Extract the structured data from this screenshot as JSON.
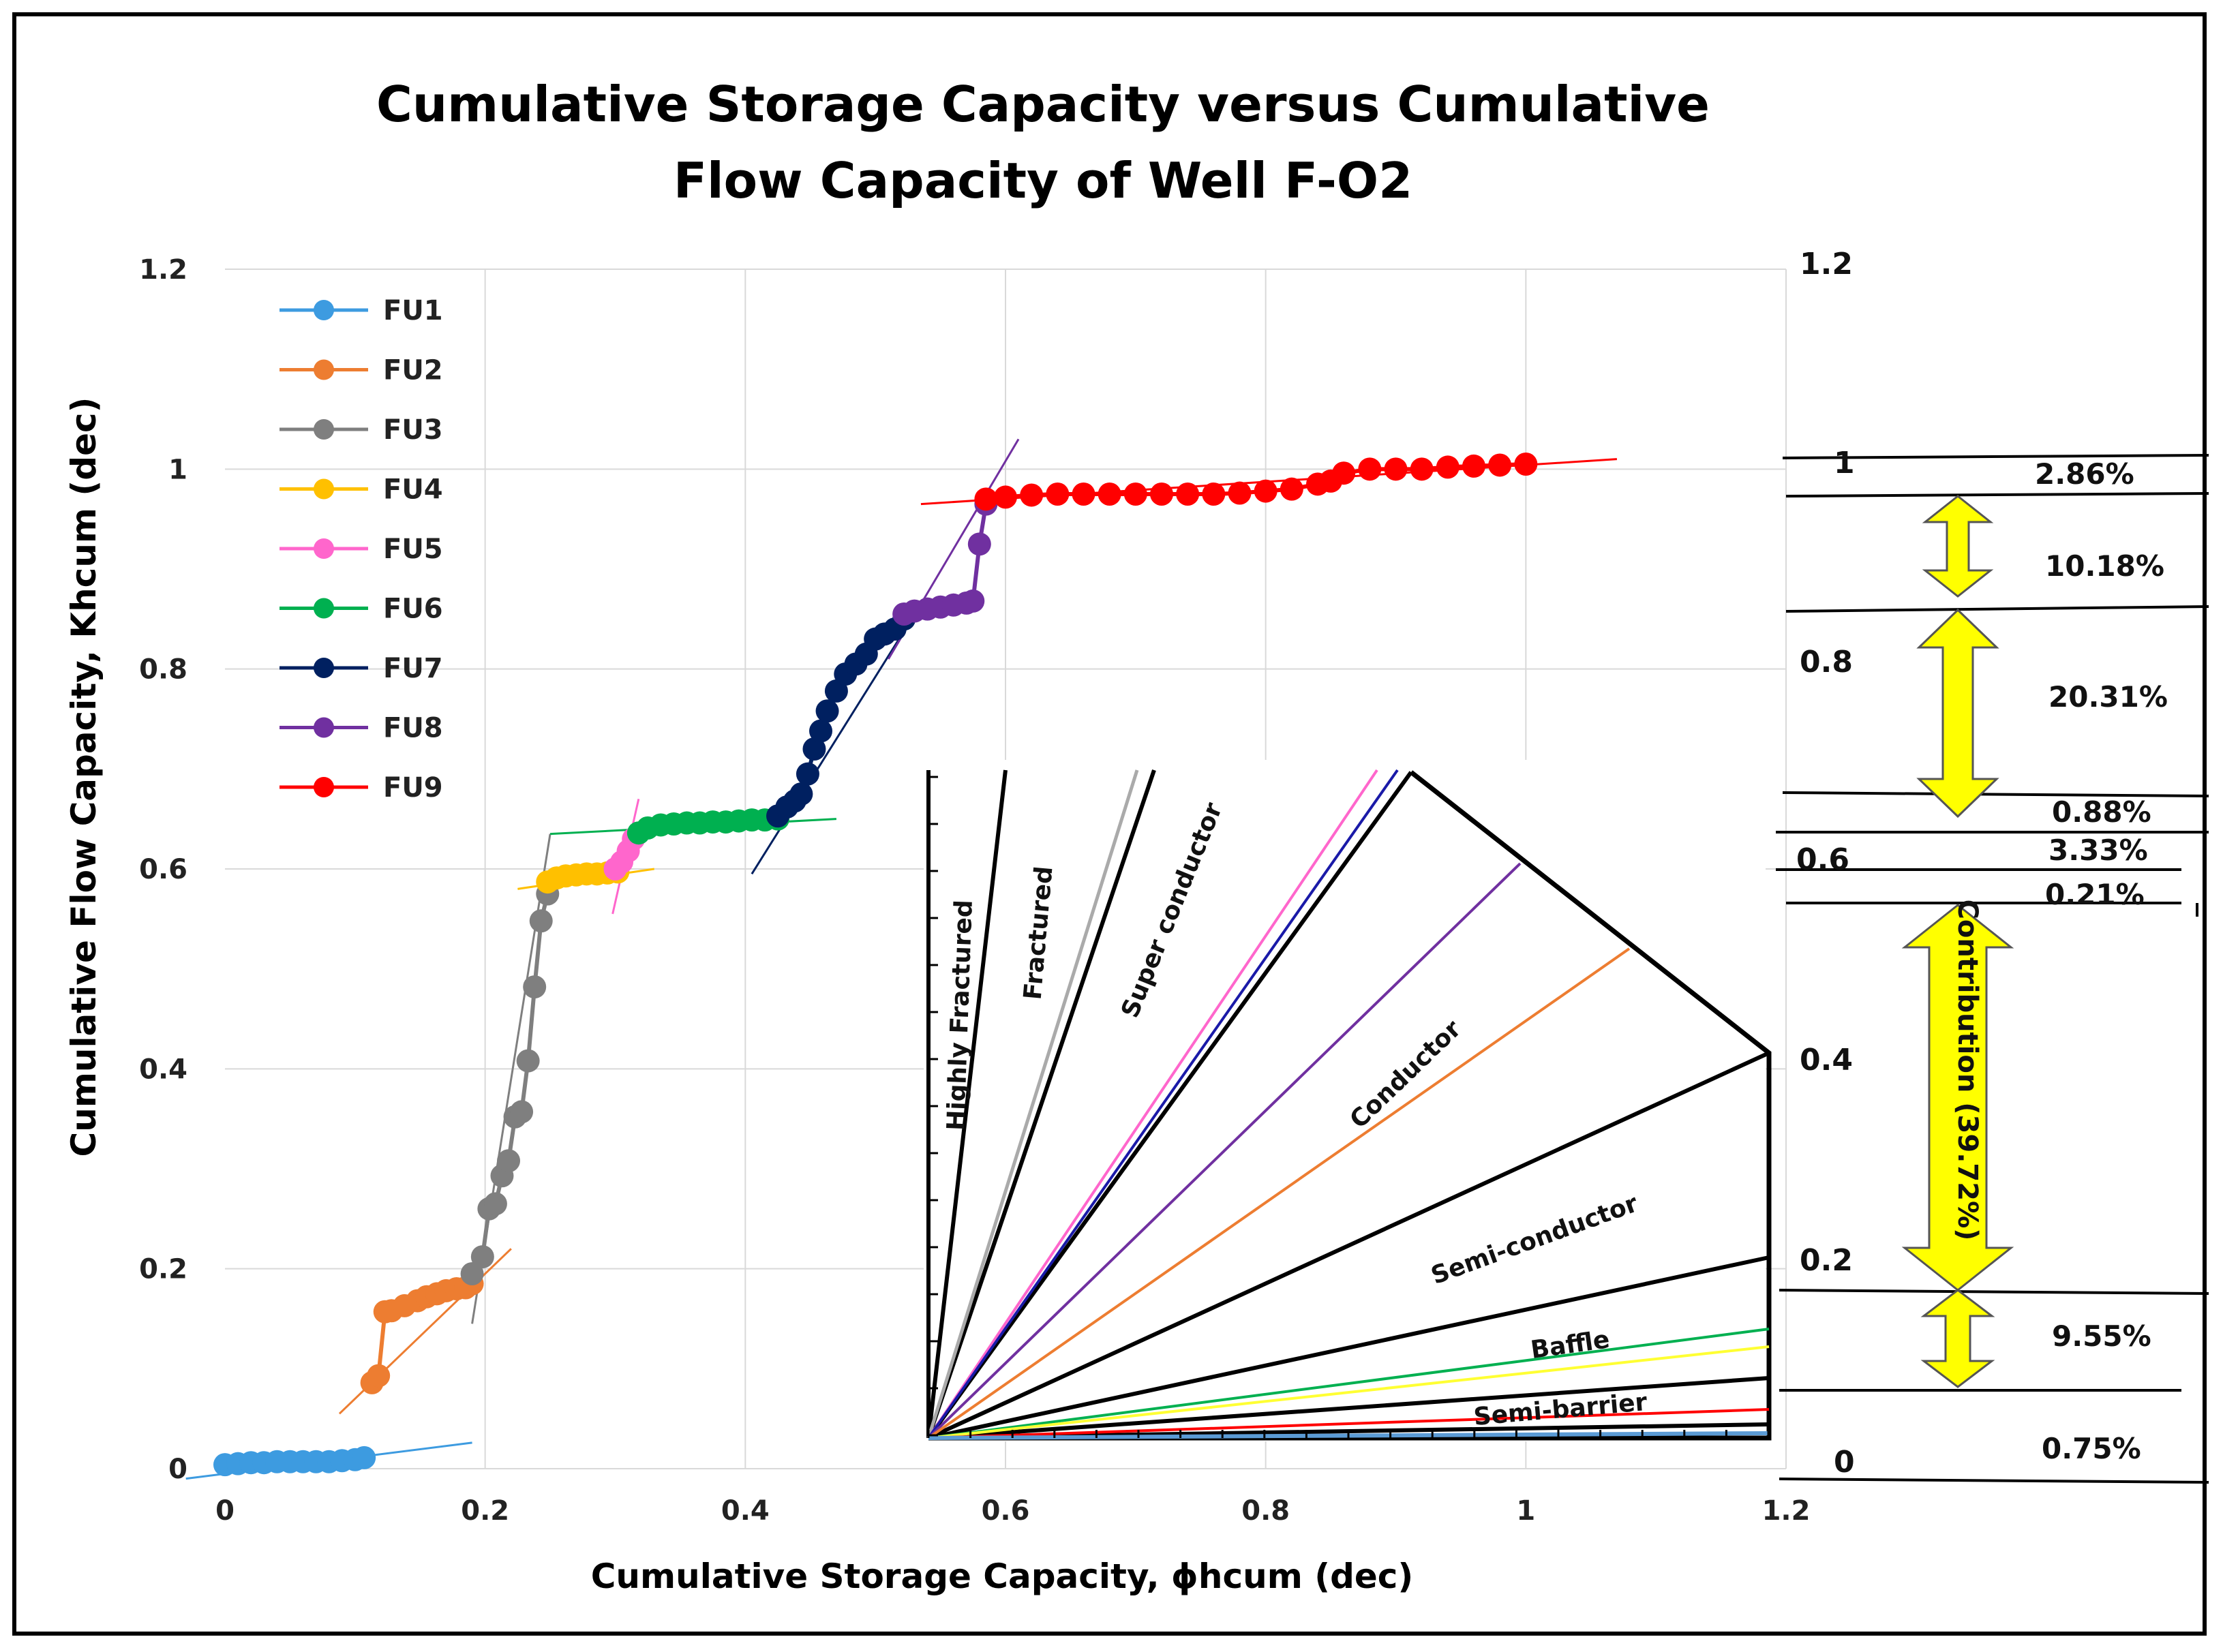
{
  "chart_data": {
    "type": "scatter",
    "title_lines": [
      "Cumulative Storage Capacity versus Cumulative",
      "Flow Capacity of Well F-O2"
    ],
    "xlabel": "Cumulative Storage Capacity, ϕhcum (dec)",
    "ylabel": "Cumulative Flow Capacity, Khcum (dec)",
    "xlim": [
      0,
      1.2
    ],
    "ylim": [
      0,
      1.2
    ],
    "x_ticks": [
      "0",
      "0.2",
      "0.4",
      "0.6",
      "0.8",
      "1",
      "1.2"
    ],
    "y_ticks": [
      "0",
      "0.2",
      "0.4",
      "0.6",
      "0.8",
      "1",
      "1.2"
    ],
    "grid": true,
    "legend_position": "top-left",
    "series": [
      {
        "name": "FU1",
        "color": "#3d9be0",
        "x": [
          0,
          0.01,
          0.02,
          0.03,
          0.04,
          0.05,
          0.06,
          0.07,
          0.08,
          0.09,
          0.1,
          0.107
        ],
        "y": [
          0.004,
          0.005,
          0.006,
          0.006,
          0.007,
          0.007,
          0.007,
          0.007,
          0.007,
          0.008,
          0.009,
          0.011
        ],
        "trend": [
          [
            -0.03,
            -0.01
          ],
          [
            0.19,
            0.026
          ]
        ]
      },
      {
        "name": "FU2",
        "color": "#ed7d31",
        "x": [
          0.113,
          0.118,
          0.123,
          0.128,
          0.138,
          0.148,
          0.155,
          0.163,
          0.17,
          0.178,
          0.185,
          0.19
        ],
        "y": [
          0.086,
          0.093,
          0.157,
          0.158,
          0.163,
          0.168,
          0.172,
          0.175,
          0.178,
          0.18,
          0.181,
          0.185
        ],
        "trend": [
          [
            0.088,
            0.055
          ],
          [
            0.22,
            0.22
          ]
        ]
      },
      {
        "name": "FU3",
        "color": "#7f7f7f",
        "x": [
          0.19,
          0.198,
          0.203,
          0.208,
          0.213,
          0.218,
          0.223,
          0.228,
          0.233,
          0.238,
          0.243,
          0.248
        ],
        "y": [
          0.195,
          0.212,
          0.26,
          0.265,
          0.293,
          0.308,
          0.352,
          0.357,
          0.408,
          0.482,
          0.548,
          0.575
        ],
        "trend": [
          [
            0.19,
            0.145
          ],
          [
            0.25,
            0.635
          ]
        ]
      },
      {
        "name": "FU4",
        "color": "#ffc000",
        "x": [
          0.248,
          0.255,
          0.262,
          0.27,
          0.278,
          0.286,
          0.294,
          0.302
        ],
        "y": [
          0.587,
          0.591,
          0.593,
          0.594,
          0.595,
          0.595,
          0.596,
          0.597
        ],
        "trend": [
          [
            0.225,
            0.58
          ],
          [
            0.33,
            0.6
          ]
        ]
      },
      {
        "name": "FU5",
        "color": "#ff66cc",
        "x": [
          0.3,
          0.305,
          0.31,
          0.314
        ],
        "y": [
          0.6,
          0.607,
          0.618,
          0.63
        ],
        "trend": [
          [
            0.298,
            0.555
          ],
          [
            0.318,
            0.67
          ]
        ]
      },
      {
        "name": "FU6",
        "color": "#00b050",
        "x": [
          0.318,
          0.325,
          0.335,
          0.345,
          0.355,
          0.365,
          0.375,
          0.385,
          0.395,
          0.405,
          0.415,
          0.425
        ],
        "y": [
          0.636,
          0.641,
          0.644,
          0.645,
          0.646,
          0.646,
          0.647,
          0.647,
          0.648,
          0.649,
          0.649,
          0.65
        ],
        "trend": [
          [
            0.25,
            0.635
          ],
          [
            0.47,
            0.65
          ]
        ]
      },
      {
        "name": "FU7",
        "color": "#002060",
        "x": [
          0.425,
          0.432,
          0.438,
          0.443,
          0.448,
          0.453,
          0.458,
          0.463,
          0.47,
          0.477,
          0.485,
          0.493,
          0.5,
          0.507,
          0.515,
          0.522
        ],
        "y": [
          0.653,
          0.662,
          0.668,
          0.675,
          0.695,
          0.72,
          0.738,
          0.758,
          0.778,
          0.795,
          0.805,
          0.815,
          0.83,
          0.835,
          0.84,
          0.85
        ],
        "trend": [
          [
            0.405,
            0.595
          ],
          [
            0.535,
            0.865
          ]
        ]
      },
      {
        "name": "FU8",
        "color": "#7030a0",
        "x": [
          0.522,
          0.53,
          0.54,
          0.55,
          0.56,
          0.57,
          0.575,
          0.58,
          0.585
        ],
        "y": [
          0.855,
          0.858,
          0.86,
          0.862,
          0.864,
          0.866,
          0.868,
          0.925,
          0.965
        ],
        "trend": [
          [
            0.51,
            0.81
          ],
          [
            0.61,
            1.03
          ]
        ]
      },
      {
        "name": "FU9",
        "color": "#ff0000",
        "x": [
          0.585,
          0.6,
          0.62,
          0.64,
          0.66,
          0.68,
          0.7,
          0.72,
          0.74,
          0.76,
          0.78,
          0.8,
          0.82,
          0.84,
          0.85,
          0.86,
          0.88,
          0.9,
          0.92,
          0.94,
          0.96,
          0.98,
          1.0
        ],
        "y": [
          0.97,
          0.972,
          0.974,
          0.975,
          0.975,
          0.975,
          0.975,
          0.975,
          0.975,
          0.975,
          0.976,
          0.978,
          0.98,
          0.985,
          0.988,
          0.996,
          1.0,
          1.0,
          1.0,
          1.002,
          1.003,
          1.004,
          1.005
        ],
        "trend": [
          [
            0.535,
            0.965
          ],
          [
            1.07,
            1.01
          ]
        ]
      }
    ],
    "inset": {
      "zone_labels": [
        "Highly Fractured",
        "Fractured",
        "Super conductor",
        "Conductor",
        "Semi-conductor",
        "Baffle",
        "Semi-barrier"
      ],
      "colored_lines": [
        {
          "name": "grey",
          "color": "#aaaaaa"
        },
        {
          "name": "pink",
          "color": "#ff66cc"
        },
        {
          "name": "blue",
          "color": "#1a1aa8"
        },
        {
          "name": "purple",
          "color": "#7030a0"
        },
        {
          "name": "orange",
          "color": "#ed7d31"
        },
        {
          "name": "green",
          "color": "#00b050"
        },
        {
          "name": "yellow",
          "color": "#ffff33"
        },
        {
          "name": "red",
          "color": "#ff0000"
        },
        {
          "name": "light-blue",
          "color": "#5b9bd5"
        }
      ]
    },
    "right_scale": {
      "ticks": [
        "1.2",
        "1",
        "0.8",
        "0.6",
        "0.4",
        "0.2",
        "0"
      ],
      "percentages": [
        "2.86%",
        "10.18%",
        "20.31%",
        "0.88%",
        "3.33%",
        "0.21%",
        "9.55%",
        "0.75%"
      ],
      "contribution_label": "Contribution (39.72%)",
      "arrow_color": "#ffff00"
    }
  }
}
